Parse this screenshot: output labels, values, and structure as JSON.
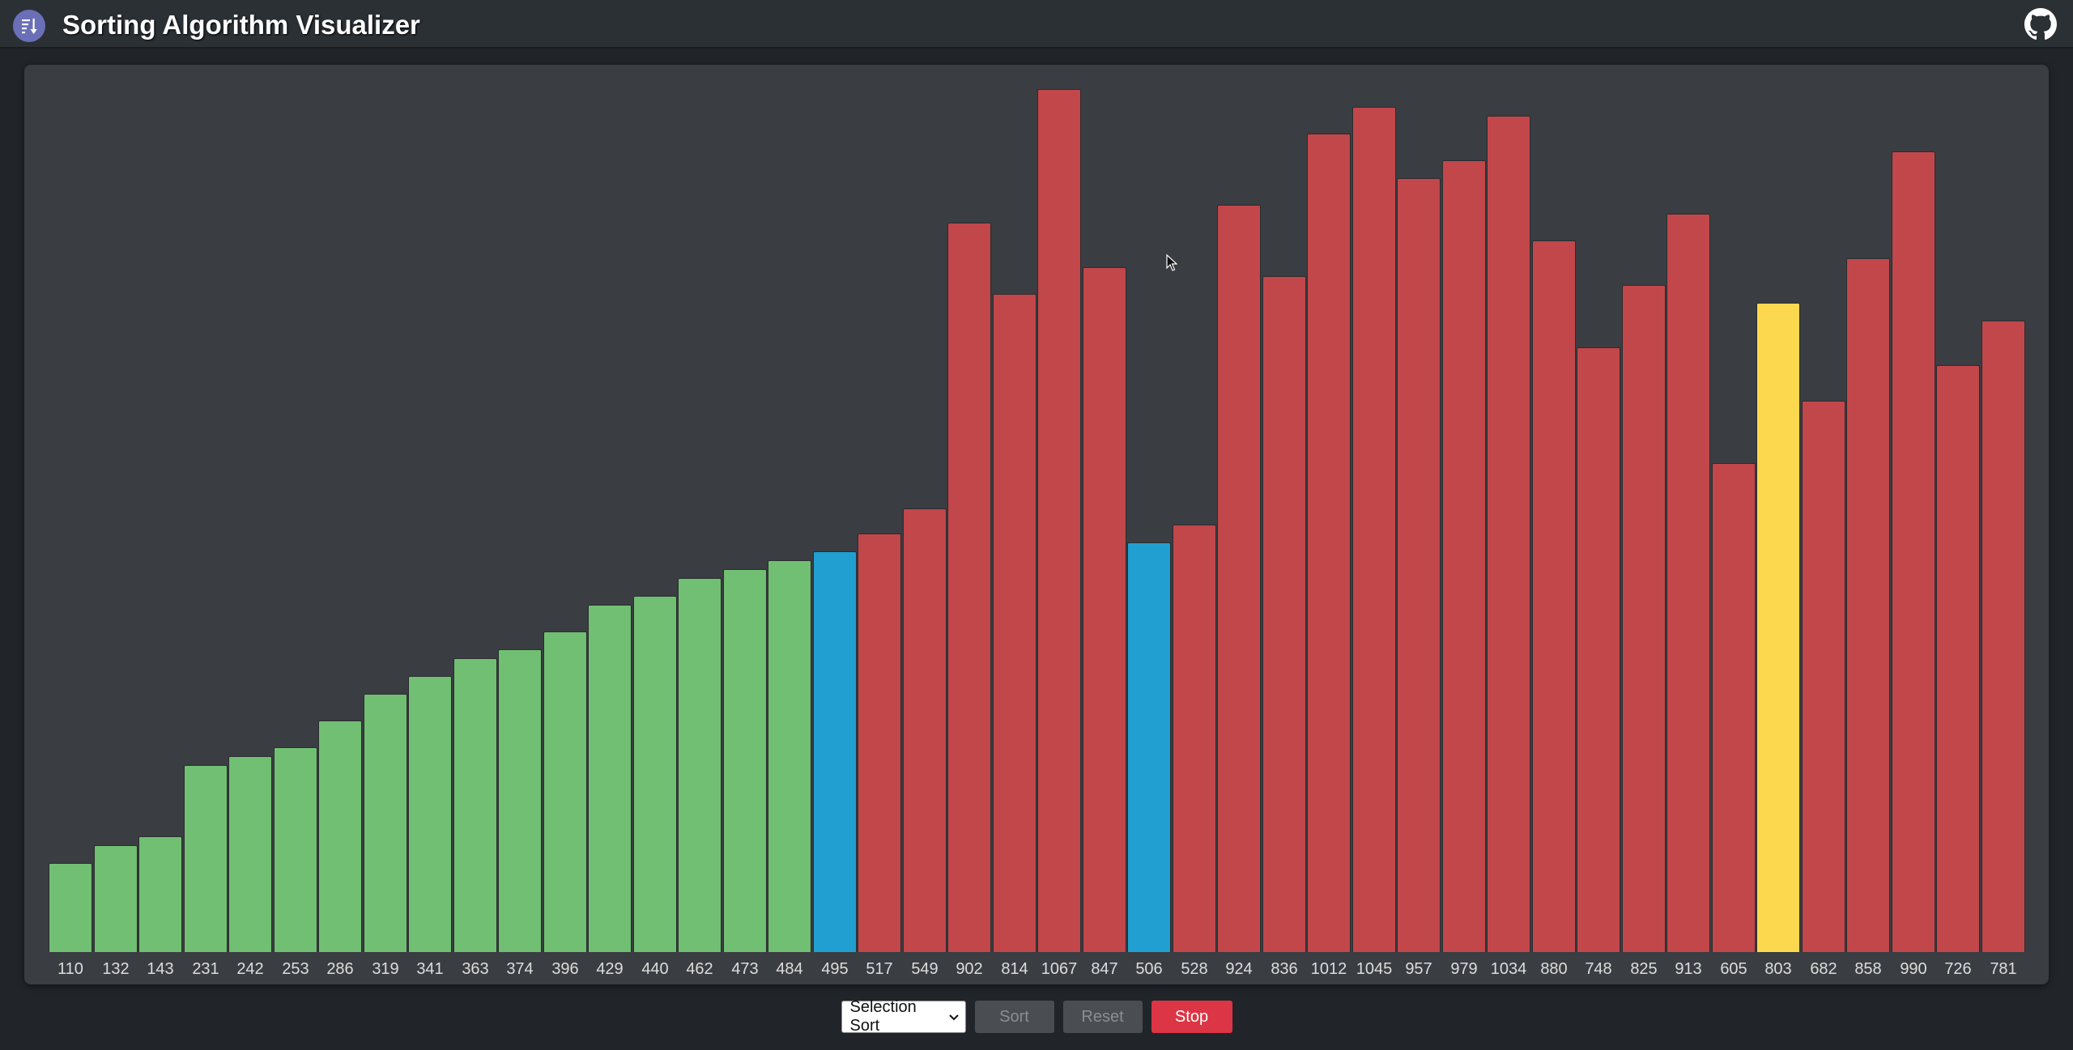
{
  "header": {
    "title": "Sorting Algorithm Visualizer",
    "logo_icon": "sort-icon",
    "github_icon": "github-icon"
  },
  "chart_data": {
    "type": "bar",
    "values": [
      110,
      132,
      143,
      231,
      242,
      253,
      286,
      319,
      341,
      363,
      374,
      396,
      429,
      440,
      462,
      473,
      484,
      495,
      517,
      549,
      902,
      814,
      1067,
      847,
      506,
      528,
      924,
      836,
      1012,
      1045,
      957,
      979,
      1034,
      880,
      748,
      825,
      913,
      605,
      803,
      682,
      858,
      990,
      726,
      781
    ],
    "states": [
      "sorted",
      "sorted",
      "sorted",
      "sorted",
      "sorted",
      "sorted",
      "sorted",
      "sorted",
      "sorted",
      "sorted",
      "sorted",
      "sorted",
      "sorted",
      "sorted",
      "sorted",
      "sorted",
      "sorted",
      "comparing",
      "unsorted",
      "unsorted",
      "unsorted",
      "unsorted",
      "unsorted",
      "unsorted",
      "comparing",
      "unsorted",
      "unsorted",
      "unsorted",
      "unsorted",
      "unsorted",
      "unsorted",
      "unsorted",
      "unsorted",
      "unsorted",
      "unsorted",
      "unsorted",
      "unsorted",
      "unsorted",
      "current",
      "unsorted",
      "unsorted",
      "unsorted",
      "unsorted",
      "unsorted"
    ],
    "colors": {
      "sorted": "#71bf72",
      "comparing": "#219fd1",
      "current": "#fcd84f",
      "unsorted": "#c2474b"
    },
    "ylim": [
      0,
      1100
    ]
  },
  "controls": {
    "algorithm_selected": "Selection Sort",
    "sort_label": "Sort",
    "reset_label": "Reset",
    "stop_label": "Stop"
  }
}
